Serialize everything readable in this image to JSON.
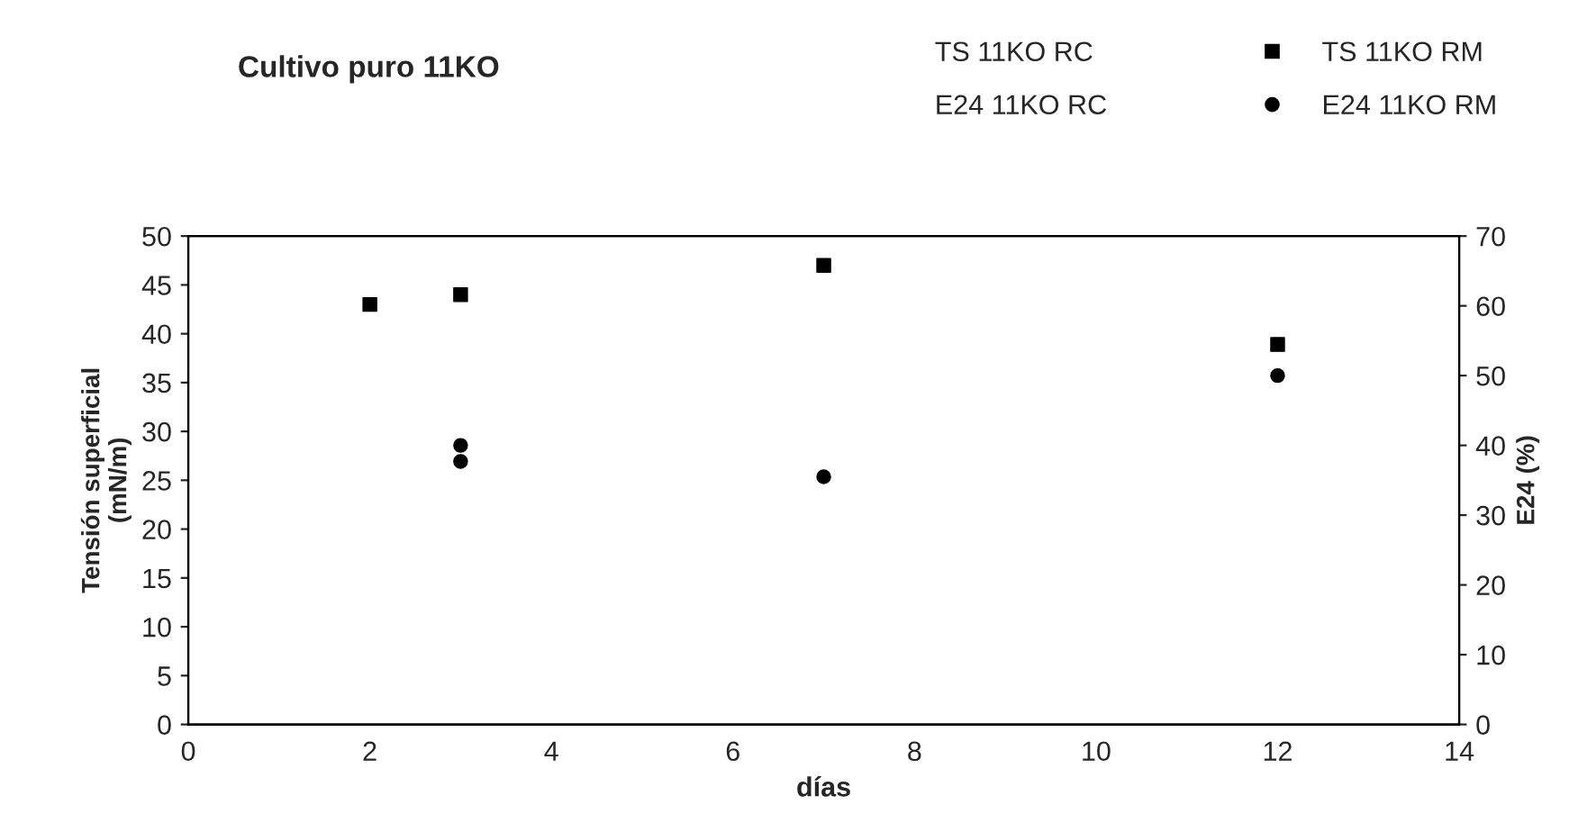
{
  "chart_data": {
    "type": "scatter",
    "title": "Cultivo puro 11KO",
    "xlabel": "días",
    "ylabel": "Tensión superficial\n(mN/m)",
    "y2label": "E24 (%)",
    "xlim": [
      0,
      14
    ],
    "xticks": [
      0,
      2,
      4,
      6,
      8,
      10,
      12,
      14
    ],
    "ylim": [
      0,
      50
    ],
    "yticks": [
      0,
      5,
      10,
      15,
      20,
      25,
      30,
      35,
      40,
      45,
      50
    ],
    "y2lim": [
      0,
      70
    ],
    "y2ticks": [
      0,
      10,
      20,
      30,
      40,
      50,
      60,
      70
    ],
    "grid": false,
    "legend": "top",
    "series": [
      {
        "name": "TS 11KO RC",
        "color": "#000000",
        "marker": "none"
      },
      {
        "name": "TS 11KO RM",
        "color": "#000000",
        "marker": "square",
        "x": [
          2,
          3,
          7,
          12
        ],
        "values": [
          43,
          44,
          47,
          38.9
        ]
      },
      {
        "name": "E24 11KO RC",
        "color": "#000000",
        "marker": "none",
        "axis": "y2"
      },
      {
        "name": "E24 11KO RM",
        "color": "#000000",
        "marker": "circle",
        "axis": "y2",
        "x": [
          3,
          3,
          7,
          12
        ],
        "values": [
          40,
          37.7,
          35.5,
          50
        ]
      }
    ]
  }
}
